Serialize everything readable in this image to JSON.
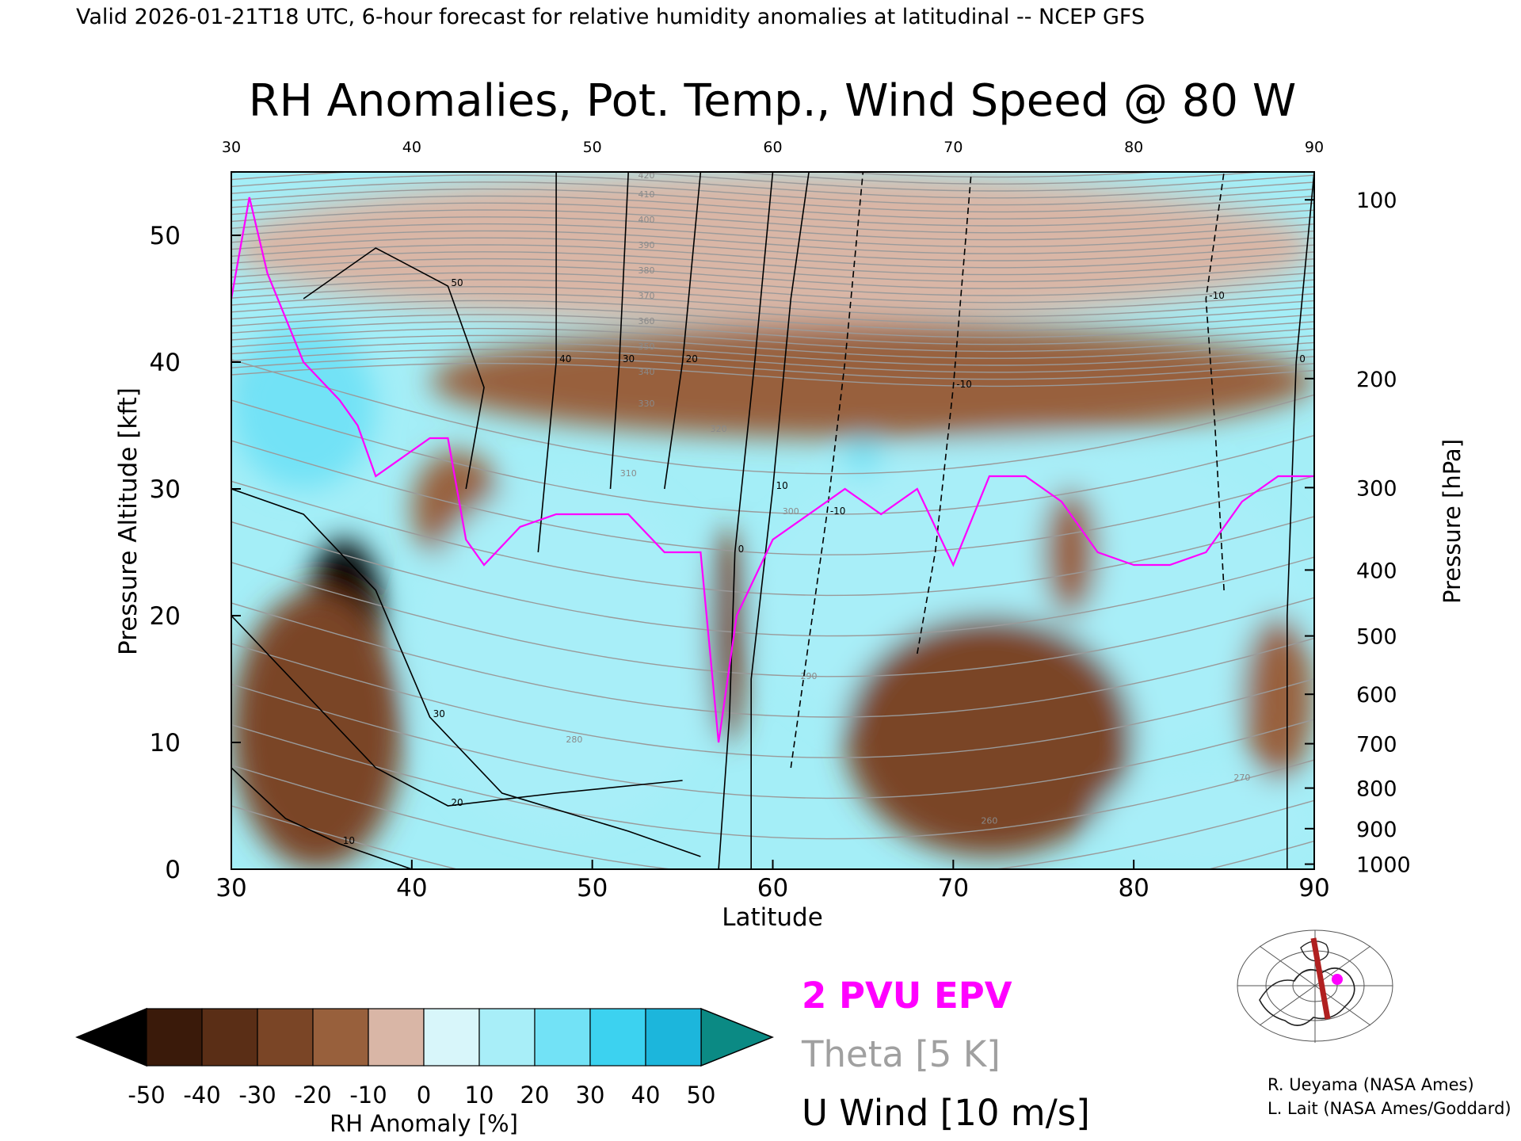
{
  "header": {
    "valid_line": "Valid 2026-01-21T18 UTC, 6-hour forecast for relative humidity anomalies at latitudinal -- NCEP GFS",
    "title": "RH Anomalies, Pot. Temp., Wind Speed @ 80 W"
  },
  "legend": {
    "epv": "2 PVU EPV",
    "theta": "Theta [5 K]",
    "uwind": "U Wind [10 m/s]"
  },
  "colorbar": {
    "label": "RH Anomaly [%]",
    "ticks": [
      "-50",
      "-40",
      "-30",
      "-20",
      "-10",
      "0",
      "10",
      "20",
      "30",
      "40",
      "50"
    ],
    "colors": [
      "#3a1a0a",
      "#5a2e16",
      "#7a4526",
      "#98603c",
      "#b78066",
      "#d9b6a6",
      "#f0dcd4",
      "#d8f6fa",
      "#a8eef8",
      "#72e2f6",
      "#3cd2f0",
      "#1cb6dc",
      "#0a90b4"
    ],
    "below_color": "#000000",
    "above_color": "#0b8a84"
  },
  "credits": {
    "line1": "R. Ueyama (NASA Ames)",
    "line2": "L. Lait (NASA Ames/Goddard)"
  },
  "chart_data": {
    "type": "heatmap",
    "title": "RH Anomalies, Pot. Temp., Wind Speed @ 80 W",
    "xlabel": "Latitude",
    "ylabel": "Pressure Altitude [kft]",
    "y2label": "Pressure [hPa]",
    "xlim": [
      30,
      90
    ],
    "ylim": [
      0,
      55
    ],
    "x_ticks": [
      "30",
      "40",
      "50",
      "60",
      "70",
      "80",
      "90"
    ],
    "y_ticks": [
      "0",
      "10",
      "20",
      "30",
      "40",
      "50"
    ],
    "pressure_ticks": [
      {
        "label": "100",
        "kft": 52.8
      },
      {
        "label": "200",
        "kft": 38.7
      },
      {
        "label": "300",
        "kft": 30.1
      },
      {
        "label": "400",
        "kft": 23.6
      },
      {
        "label": "500",
        "kft": 18.4
      },
      {
        "label": "600",
        "kft": 13.8
      },
      {
        "label": "700",
        "kft": 9.9
      },
      {
        "label": "800",
        "kft": 6.4
      },
      {
        "label": "900",
        "kft": 3.2
      },
      {
        "label": "1000",
        "kft": 0.4
      }
    ],
    "rh_anomaly_regions": [
      {
        "value": 50,
        "lat": [
          30,
          34
        ],
        "kft": [
          34,
          41
        ]
      },
      {
        "value": 30,
        "lat": [
          30,
          38
        ],
        "kft": [
          30,
          43
        ]
      },
      {
        "value": -50,
        "lat": [
          34,
          38.5
        ],
        "kft": [
          12,
          26
        ]
      },
      {
        "value": -50,
        "lat": [
          32,
          37
        ],
        "kft": [
          3,
          7
        ]
      },
      {
        "value": -35,
        "lat": [
          30,
          39.5
        ],
        "kft": [
          0,
          22
        ]
      },
      {
        "value": -30,
        "lat": [
          40,
          45
        ],
        "kft": [
          24,
          33
        ]
      },
      {
        "value": -25,
        "lat": [
          41,
          90
        ],
        "kft": [
          34,
          43
        ]
      },
      {
        "value": -5,
        "lat": [
          30,
          90
        ],
        "kft": [
          43,
          55
        ]
      },
      {
        "value": 20,
        "lat": [
          40,
          57
        ],
        "kft": [
          3,
          31
        ]
      },
      {
        "value": -40,
        "lat": [
          56.5,
          58.5
        ],
        "kft": [
          10,
          27
        ]
      },
      {
        "value": 25,
        "lat": [
          59,
          90
        ],
        "kft": [
          8,
          34
        ]
      },
      {
        "value": 35,
        "lat": [
          64,
          66
        ],
        "kft": [
          31,
          34
        ]
      },
      {
        "value": -40,
        "lat": [
          64,
          80
        ],
        "kft": [
          1,
          20
        ]
      },
      {
        "value": -30,
        "lat": [
          75,
          78
        ],
        "kft": [
          20,
          30
        ]
      },
      {
        "value": -30,
        "lat": [
          86,
          90
        ],
        "kft": [
          7,
          20
        ]
      },
      {
        "value": 20,
        "lat": [
          78,
          90
        ],
        "kft": [
          0,
          8
        ]
      }
    ],
    "epv_2pvu": {
      "lat": [
        30,
        31,
        32,
        34,
        36,
        37,
        38,
        40,
        41,
        42,
        43,
        44,
        46,
        48,
        50,
        52,
        54,
        56,
        57,
        58,
        60,
        62,
        64,
        66,
        68,
        70,
        72,
        74,
        76,
        78,
        80,
        82,
        84,
        86,
        88,
        90
      ],
      "kft": [
        45,
        53,
        47,
        40,
        37,
        35,
        31,
        33,
        34,
        34,
        26,
        24,
        27,
        28,
        28,
        28,
        25,
        25,
        10,
        20,
        26,
        28,
        30,
        28,
        30,
        24,
        31,
        31,
        29,
        25,
        24,
        24,
        25,
        29,
        31,
        31
      ]
    },
    "theta_contours_K": [
      "260",
      "270",
      "280",
      "290",
      "300",
      "310",
      "320",
      "330",
      "340",
      "350",
      "360",
      "370",
      "380",
      "390",
      "400",
      "410",
      "420"
    ],
    "u_wind_labels_ms": [
      "-10",
      "0",
      "10",
      "20",
      "30",
      "40",
      "50"
    ]
  }
}
